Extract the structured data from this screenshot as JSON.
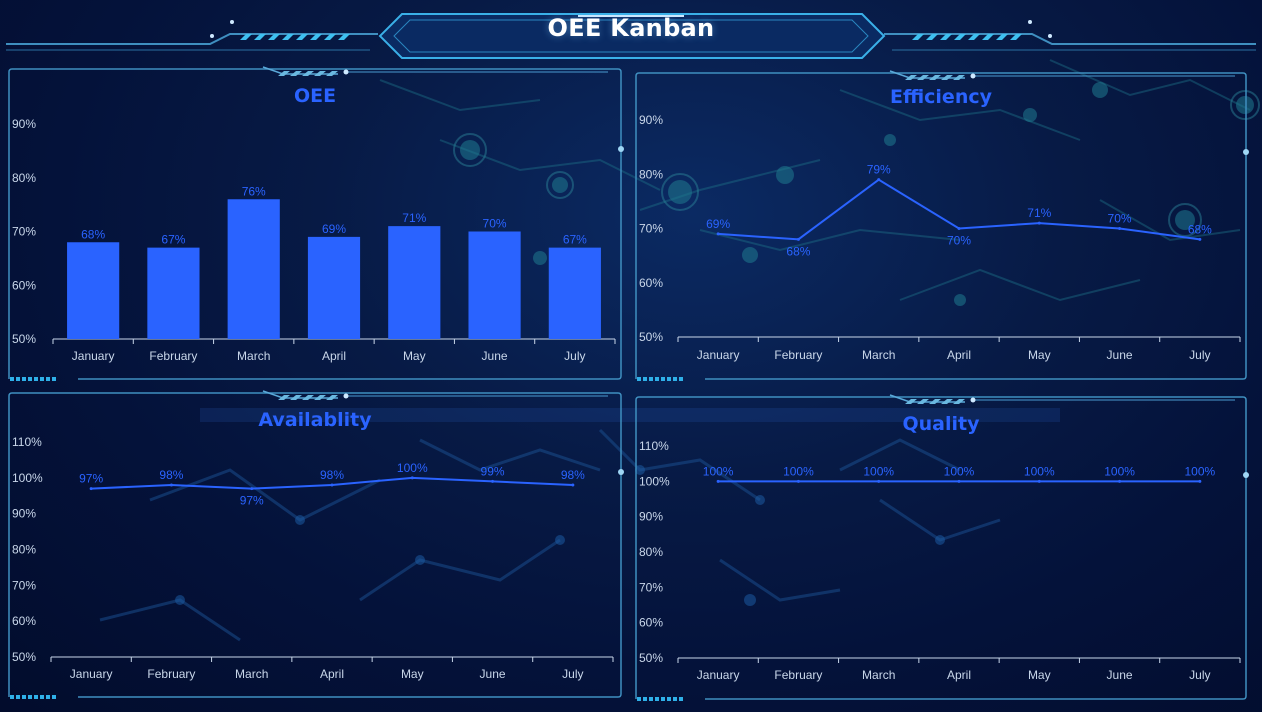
{
  "header": {
    "title": "OEE Kanban"
  },
  "colors": {
    "accent": "#2a63ff",
    "frame": "#3f8fc0",
    "label": "#c9d7ea"
  },
  "charts": [
    {
      "id": "oee",
      "title": "OEE",
      "chart_data": {
        "type": "bar",
        "categories": [
          "January",
          "February",
          "March",
          "April",
          "May",
          "June",
          "July"
        ],
        "values": [
          68,
          67,
          76,
          69,
          71,
          70,
          67
        ],
        "value_labels": [
          "68%",
          "67%",
          "76%",
          "69%",
          "71%",
          "70%",
          "67%"
        ],
        "yticks": [
          "50%",
          "60%",
          "70%",
          "80%",
          "90%"
        ],
        "ylim": [
          50,
          90
        ]
      }
    },
    {
      "id": "efficiency",
      "title": "Efficiency",
      "chart_data": {
        "type": "line",
        "categories": [
          "January",
          "February",
          "March",
          "April",
          "May",
          "June",
          "July"
        ],
        "values": [
          69,
          68,
          79,
          70,
          71,
          70,
          68
        ],
        "value_labels": [
          "69%",
          "68%",
          "79%",
          "70%",
          "71%",
          "70%",
          "68%"
        ],
        "yticks": [
          "50%",
          "60%",
          "70%",
          "80%",
          "90%"
        ],
        "ylim": [
          50,
          90
        ]
      }
    },
    {
      "id": "availability",
      "title": "Availablity",
      "chart_data": {
        "type": "line",
        "categories": [
          "January",
          "February",
          "March",
          "April",
          "May",
          "June",
          "July"
        ],
        "values": [
          97,
          98,
          97,
          98,
          100,
          99,
          98
        ],
        "value_labels": [
          "97%",
          "98%",
          "97%",
          "98%",
          "100%",
          "99%",
          "98%"
        ],
        "yticks": [
          "50%",
          "60%",
          "70%",
          "80%",
          "90%",
          "100%",
          "110%"
        ],
        "ylim": [
          50,
          110
        ]
      }
    },
    {
      "id": "quality",
      "title": "Quality",
      "chart_data": {
        "type": "line",
        "categories": [
          "January",
          "February",
          "March",
          "April",
          "May",
          "June",
          "July"
        ],
        "values": [
          100,
          100,
          100,
          100,
          100,
          100,
          100
        ],
        "value_labels": [
          "100%",
          "100%",
          "100%",
          "100%",
          "100%",
          "100%",
          "100%"
        ],
        "yticks": [
          "50%",
          "60%",
          "70%",
          "80%",
          "90%",
          "100%",
          "110%"
        ],
        "ylim": [
          50,
          110
        ]
      }
    }
  ]
}
